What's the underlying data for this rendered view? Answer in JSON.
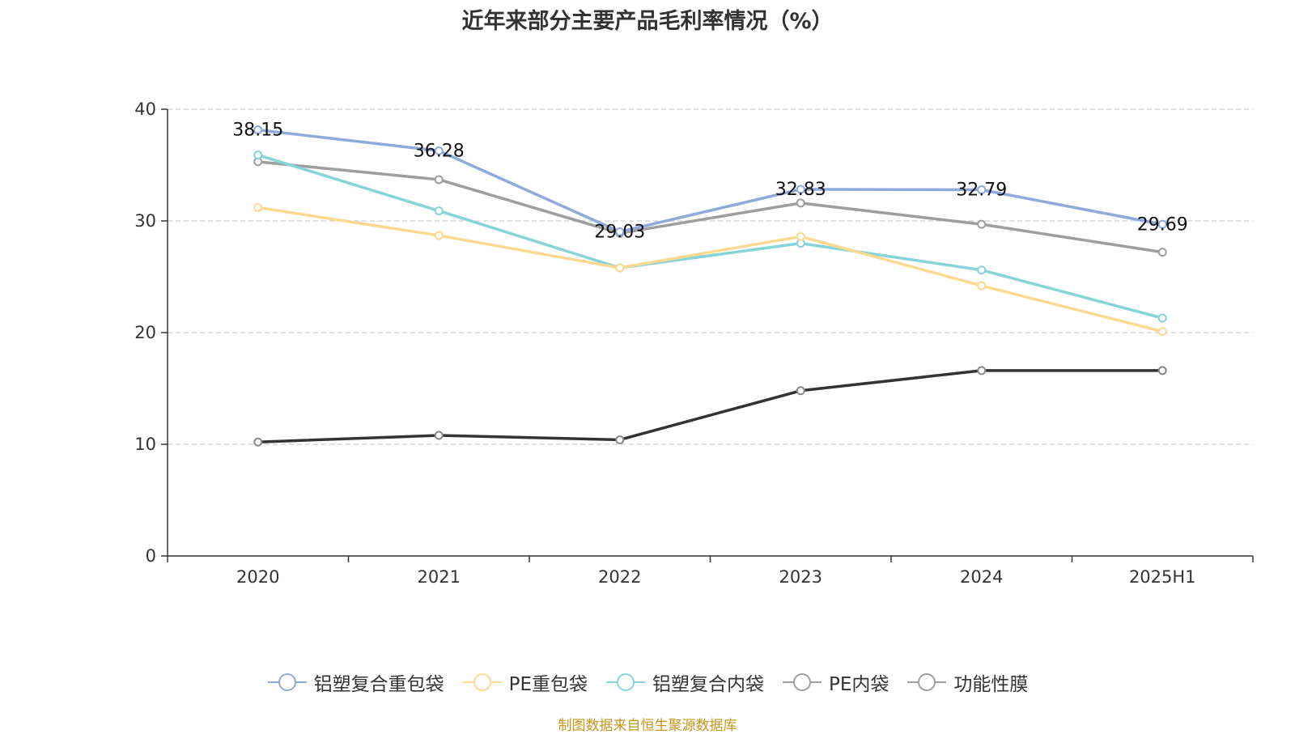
{
  "chart_data": {
    "type": "line",
    "title": "近年来部分主要产品毛利率情况（%）",
    "categories": [
      "2020",
      "2021",
      "2022",
      "2023",
      "2024",
      "2025H1"
    ],
    "ylim": [
      0,
      40
    ],
    "yticks": [
      0,
      10,
      20,
      30,
      40
    ],
    "grid": true,
    "legend_position": "bottom",
    "series": [
      {
        "name": "铝塑复合重包袋",
        "values": [
          38.15,
          36.28,
          29.03,
          32.83,
          32.79,
          29.69
        ],
        "color": "#8eaadb",
        "show_labels": true
      },
      {
        "name": "PE重包袋",
        "values": [
          31.2,
          28.7,
          25.8,
          28.6,
          24.2,
          20.1
        ],
        "color": "#fcd98f",
        "show_labels": false
      },
      {
        "name": "铝塑复合内袋",
        "values": [
          35.9,
          30.9,
          25.8,
          28.0,
          25.6,
          21.3
        ],
        "color": "#84d4d8",
        "show_labels": false
      },
      {
        "name": "PE内袋",
        "values": [
          35.3,
          33.7,
          28.9,
          31.6,
          29.7,
          27.2
        ],
        "color": "#9e9e9e",
        "show_labels": false
      },
      {
        "name": "功能性膜",
        "values": [
          10.2,
          10.8,
          10.4,
          14.8,
          16.6,
          16.6
        ],
        "color": "#333333",
        "show_labels": false
      }
    ],
    "legend_colors": [
      "#8eaadb",
      "#fcd98f",
      "#84d4d8",
      "#9e9e9e",
      "#9e9e9e"
    ]
  },
  "source_note": "制图数据来自恒生聚源数据库"
}
